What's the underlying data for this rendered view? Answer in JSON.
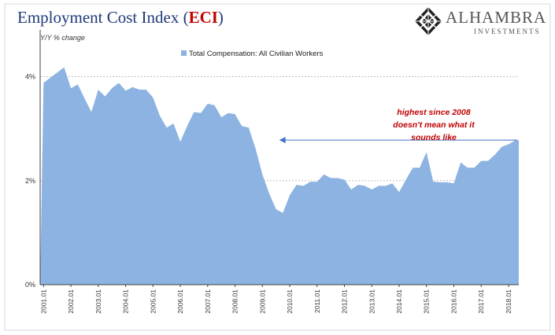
{
  "header": {
    "title_main": "Employment Cost Index (",
    "title_accent": "ECI",
    "title_close": ")",
    "y_axis_label": "Y/Y % change"
  },
  "logo": {
    "name": "ALHAMBRA",
    "subtitle": "INVESTMENTS",
    "icon": "diamond-lattice-icon"
  },
  "colors": {
    "area": "#8db3e2",
    "grid": "#bfbfbf",
    "axis": "#404040",
    "annotation": "#c00000",
    "arrow": "#4472c4",
    "title": "#1f3a78"
  },
  "chart_data": {
    "type": "area",
    "legend": "Total Compensation: All Civilian Workers",
    "legend_position": "top-left",
    "ylim": [
      0,
      4.9
    ],
    "yticks": [
      {
        "value": 0,
        "label": "0%"
      },
      {
        "value": 2,
        "label": "2%"
      },
      {
        "value": 4,
        "label": "4%"
      }
    ],
    "grid": true,
    "xticks": [
      "2001.01",
      "2002.01",
      "2003.01",
      "2004.01",
      "2005.01",
      "2006.01",
      "2007.01",
      "2008.01",
      "2009.01",
      "2010.01",
      "2011.01",
      "2012.01",
      "2013.01",
      "2014.01",
      "2015.01",
      "2016.01",
      "2017.01",
      "2018.01"
    ],
    "x_start": "2001Q1",
    "frequency": "quarterly",
    "values": [
      3.88,
      3.98,
      4.08,
      4.18,
      3.78,
      3.85,
      3.58,
      3.32,
      3.75,
      3.62,
      3.78,
      3.88,
      3.73,
      3.8,
      3.75,
      3.75,
      3.6,
      3.25,
      3.02,
      3.1,
      2.75,
      3.05,
      3.32,
      3.3,
      3.48,
      3.45,
      3.22,
      3.3,
      3.28,
      3.05,
      3.02,
      2.62,
      2.12,
      1.75,
      1.45,
      1.38,
      1.72,
      1.92,
      1.9,
      1.98,
      1.98,
      2.12,
      2.05,
      2.05,
      2.02,
      1.83,
      1.92,
      1.9,
      1.83,
      1.9,
      1.9,
      1.95,
      1.78,
      2.02,
      2.25,
      2.25,
      2.55,
      1.98,
      1.97,
      1.97,
      1.95,
      2.35,
      2.25,
      2.25,
      2.38,
      2.38,
      2.5,
      2.65,
      2.7,
      2.78
    ],
    "annotation": {
      "lines": [
        "highest since 2008",
        "doesn't mean what it",
        "sounds like"
      ],
      "arrow_level": 2.78,
      "arrow_to": "2009Q3"
    }
  }
}
